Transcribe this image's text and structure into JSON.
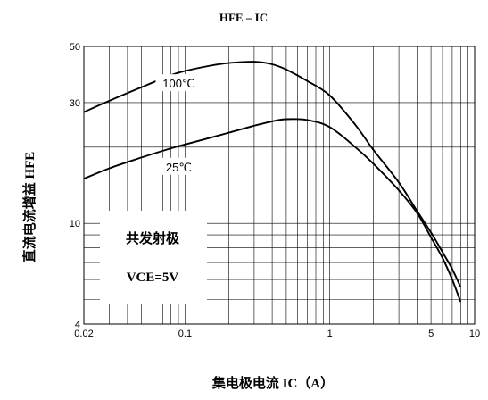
{
  "chart_data": {
    "type": "line",
    "title": "HFE – IC",
    "xlabel": "集电极电流 IC（A）",
    "ylabel": "直流电流增益 HFE",
    "xscale": "log",
    "yscale": "log",
    "xlim": [
      0.02,
      10
    ],
    "ylim": [
      4,
      50
    ],
    "xticks": [
      0.02,
      0.1,
      1,
      5,
      10
    ],
    "xtick_labels": [
      "0.02",
      "0.1",
      "1",
      "5",
      "10"
    ],
    "yticks": [
      4,
      10,
      30,
      50
    ],
    "ytick_labels": [
      "4",
      "10",
      "30",
      "50"
    ],
    "grid": true,
    "annotation_box": {
      "line1": "共发射极",
      "line2": "VCE=5V"
    },
    "series": [
      {
        "name": "100℃",
        "x": [
          0.02,
          0.03,
          0.05,
          0.08,
          0.1,
          0.15,
          0.2,
          0.3,
          0.4,
          0.5,
          0.7,
          1.0,
          1.5,
          2.0,
          3.0,
          4.0,
          5.0,
          6.0,
          7.0,
          8.0
        ],
        "y": [
          27.5,
          30.5,
          34.5,
          38.5,
          40.0,
          42.0,
          43.0,
          43.5,
          42.5,
          40.5,
          36.5,
          32.0,
          24.5,
          19.5,
          14.5,
          11.2,
          9.2,
          7.7,
          6.6,
          5.6
        ]
      },
      {
        "name": "25℃",
        "x": [
          0.02,
          0.03,
          0.05,
          0.08,
          0.1,
          0.15,
          0.2,
          0.3,
          0.4,
          0.5,
          0.7,
          1.0,
          1.5,
          2.0,
          3.0,
          4.0,
          5.0,
          6.0,
          7.0,
          8.0
        ],
        "y": [
          15.0,
          16.5,
          18.2,
          19.8,
          20.5,
          21.8,
          22.8,
          24.3,
          25.3,
          25.8,
          25.6,
          24.0,
          20.0,
          17.2,
          13.5,
          11.0,
          8.8,
          7.3,
          6.0,
          4.9
        ]
      }
    ]
  }
}
